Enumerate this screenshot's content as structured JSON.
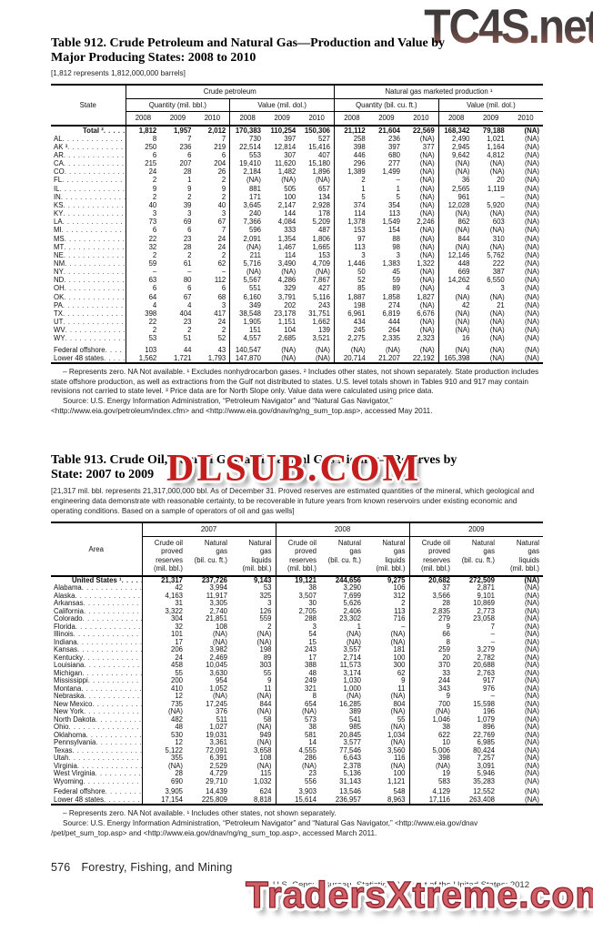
{
  "watermarks": {
    "top": "TC4S.net",
    "middle": "DLSUB.COM",
    "bottom": "TradersXtreme.com"
  },
  "table912": {
    "title_lines": [
      "Table 912. Crude Petroleum and Natural Gas—Production and Value by",
      "Major Producing States: 2008 to 2010"
    ],
    "bracket_note": "[1,812 represents 1,812,000,000 barrels]",
    "state_header": "State",
    "groups": [
      "Crude petroleum",
      "Natural gas marketed production ¹"
    ],
    "subgroups": [
      "Quantity (mil. bbl.)",
      "Value (mil. dol.)",
      "Quantity (bil. cu. ft.)",
      "Value (mil. dol.)"
    ],
    "years": [
      "2008",
      "2009",
      "2010"
    ],
    "rows": [
      {
        "label": "Total ²",
        "bold": true,
        "values": [
          "1,812",
          "1,957",
          "2,012",
          "170,383",
          "110,254",
          "150,306",
          "21,112",
          "21,604",
          "22,569",
          "168,342",
          "79,188",
          "(NA)"
        ]
      },
      {
        "label": "AL",
        "values": [
          "8",
          "7",
          "7",
          "730",
          "397",
          "527",
          "258",
          "236",
          "(NA)",
          "2,490",
          "1,021",
          "(NA)"
        ]
      },
      {
        "label": "AK ³",
        "values": [
          "250",
          "236",
          "219",
          "22,514",
          "12,814",
          "15,416",
          "398",
          "397",
          "377",
          "2,945",
          "1,164",
          "(NA)"
        ]
      },
      {
        "label": "AR",
        "values": [
          "6",
          "6",
          "6",
          "553",
          "307",
          "407",
          "446",
          "680",
          "(NA)",
          "9,642",
          "4,812",
          "(NA)"
        ]
      },
      {
        "label": "CA",
        "values": [
          "215",
          "207",
          "204",
          "19,410",
          "11,620",
          "15,180",
          "296",
          "277",
          "(NA)",
          "(NA)",
          "(NA)",
          "(NA)"
        ]
      },
      {
        "label": "CO",
        "values": [
          "24",
          "28",
          "26",
          "2,184",
          "1,482",
          "1,896",
          "1,389",
          "1,499",
          "(NA)",
          "(NA)",
          "(NA)",
          "(NA)"
        ]
      },
      {
        "label": "FL",
        "values": [
          "2",
          "1",
          "2",
          "(NA)",
          "(NA)",
          "(NA)",
          "2",
          "–",
          "(NA)",
          "36",
          "20",
          "(NA)"
        ]
      },
      {
        "label": "IL",
        "values": [
          "9",
          "9",
          "9",
          "881",
          "505",
          "657",
          "1",
          "1",
          "(NA)",
          "2,565",
          "1,119",
          "(NA)"
        ]
      },
      {
        "label": "IN",
        "values": [
          "2",
          "2",
          "2",
          "171",
          "100",
          "134",
          "5",
          "5",
          "(NA)",
          "961",
          "–",
          "(NA)"
        ]
      },
      {
        "label": "KS",
        "values": [
          "40",
          "39",
          "40",
          "3,645",
          "2,147",
          "2,928",
          "374",
          "354",
          "(NA)",
          "12,028",
          "5,920",
          "(NA)"
        ]
      },
      {
        "label": "KY",
        "values": [
          "3",
          "3",
          "3",
          "240",
          "144",
          "178",
          "114",
          "113",
          "(NA)",
          "(NA)",
          "(NA)",
          "(NA)"
        ]
      },
      {
        "label": "LA",
        "values": [
          "73",
          "69",
          "67",
          "7,366",
          "4,084",
          "5,209",
          "1,378",
          "1,549",
          "2,246",
          "862",
          "603",
          "(NA)"
        ]
      },
      {
        "label": "MI",
        "values": [
          "6",
          "6",
          "7",
          "596",
          "333",
          "487",
          "153",
          "154",
          "(NA)",
          "(NA)",
          "(NA)",
          "(NA)"
        ]
      },
      {
        "label": "MS",
        "values": [
          "22",
          "23",
          "24",
          "2,091",
          "1,354",
          "1,806",
          "97",
          "88",
          "(NA)",
          "844",
          "310",
          "(NA)"
        ]
      },
      {
        "label": "MT",
        "values": [
          "32",
          "28",
          "24",
          "(NA)",
          "1,467",
          "1,665",
          "113",
          "98",
          "(NA)",
          "(NA)",
          "(NA)",
          "(NA)"
        ]
      },
      {
        "label": "NE",
        "values": [
          "2",
          "2",
          "2",
          "211",
          "114",
          "153",
          "3",
          "3",
          "(NA)",
          "12,146",
          "5,762",
          "(NA)"
        ]
      },
      {
        "label": "NM",
        "values": [
          "59",
          "61",
          "62",
          "5,716",
          "3,490",
          "4,709",
          "1,446",
          "1,383",
          "1,322",
          "448",
          "222",
          "(NA)"
        ]
      },
      {
        "label": "NY",
        "values": [
          "–",
          "–",
          "–",
          "(NA)",
          "(NA)",
          "(NA)",
          "50",
          "45",
          "(NA)",
          "669",
          "387",
          "(NA)"
        ]
      },
      {
        "label": "ND",
        "values": [
          "63",
          "80",
          "112",
          "5,567",
          "4,286",
          "7,867",
          "52",
          "59",
          "(NA)",
          "14,262",
          "6,550",
          "(NA)"
        ]
      },
      {
        "label": "OH",
        "values": [
          "6",
          "6",
          "6",
          "551",
          "329",
          "427",
          "85",
          "89",
          "(NA)",
          "4",
          "3",
          "(NA)"
        ]
      },
      {
        "label": "OK",
        "values": [
          "64",
          "67",
          "68",
          "6,160",
          "3,791",
          "5,116",
          "1,887",
          "1,858",
          "1,827",
          "(NA)",
          "(NA)",
          "(NA)"
        ]
      },
      {
        "label": "PA",
        "values": [
          "4",
          "4",
          "3",
          "349",
          "202",
          "243",
          "198",
          "274",
          "(NA)",
          "42",
          "21",
          "(NA)"
        ]
      },
      {
        "label": "TX",
        "values": [
          "398",
          "404",
          "417",
          "38,548",
          "23,178",
          "31,751",
          "6,961",
          "6,819",
          "6,676",
          "(NA)",
          "(NA)",
          "(NA)"
        ]
      },
      {
        "label": "UT",
        "values": [
          "22",
          "23",
          "24",
          "1,905",
          "1,151",
          "1,662",
          "434",
          "444",
          "(NA)",
          "(NA)",
          "(NA)",
          "(NA)"
        ]
      },
      {
        "label": "WV",
        "values": [
          "2",
          "2",
          "2",
          "151",
          "104",
          "139",
          "245",
          "264",
          "(NA)",
          "(NA)",
          "(NA)",
          "(NA)"
        ]
      },
      {
        "label": "WY",
        "values": [
          "53",
          "51",
          "52",
          "4,557",
          "2,685",
          "3,521",
          "2,275",
          "2,335",
          "2,323",
          "16",
          "(NA)",
          "(NA)"
        ]
      },
      {
        "label": "Federal offshore",
        "gap_before": true,
        "values": [
          "103",
          "44",
          "43",
          "140,547",
          "(NA)",
          "(NA)",
          "(NA)",
          "(NA)",
          "(NA)",
          "(NA)",
          "(NA)",
          "(NA)"
        ]
      },
      {
        "label": "Lower 48 states",
        "values": [
          "1,562",
          "1,721",
          "1,793",
          "147,870",
          "(NA)",
          "(NA)",
          "20,714",
          "21,207",
          "22,192",
          "165,398",
          "(NA)",
          "(NA)"
        ]
      }
    ],
    "footnote": "– Represents zero. NA Not available.  ¹ Excludes nonhydrocarbon gases.  ² Includes other states, not shown separately. State production includes state offshore production, as well as extractions from the Gulf not distributed to states. U.S. level totals shown in Tables 910 and 917 may contain revisions not carried to state level.  ³ Price data are for North Slope only. Value data were calculated using price data.",
    "source_line1": "Source: U.S. Energy Information Administration, “Petroleum Navigator” and “Natural Gas Navigator,”",
    "source_line2": "<http://www.eia.gov/petroleum/index.cfm> and <http://www.eia.gov/dnav/ng/ng_sum_top.asp>, accessed May 2011."
  },
  "table913": {
    "title_lines": [
      "Table 913. Crude Oil, Natural Gas, and Natural Gas Liquids—Reserves by",
      "State: 2007 to 2009"
    ],
    "bracket_note": "[21,317 mil. bbl. represents 21,317,000,000 bbl. As of December 31. Proved reserves are estimated quantities of the mineral, which geological and engineering data demonstrate with reasonable certainty, to be recoverable in future years from known reservoirs under existing economic and operating conditions. Based on a sample of operators of oil and gas wells]",
    "area_header": "Area",
    "years": [
      "2007",
      "2008",
      "2009"
    ],
    "col_headers": [
      "Crude oil\nproved\nreserves\n(mil. bbl.)",
      "Natural\ngas\n(bil. cu. ft.)",
      "Natural\ngas\nliquids\n(mil. bbl.)"
    ],
    "rows": [
      {
        "label": "United States ¹",
        "bold": true,
        "values": [
          "21,317",
          "237,726",
          "9,143",
          "19,121",
          "244,656",
          "9,275",
          "20,682",
          "272,509",
          "(NA)"
        ]
      },
      {
        "label": "Alabama",
        "values": [
          "42",
          "3,994",
          "53",
          "38",
          "3,290",
          "106",
          "37",
          "2,871",
          "(NA)"
        ]
      },
      {
        "label": "Alaska",
        "values": [
          "4,163",
          "11,917",
          "325",
          "3,507",
          "7,699",
          "312",
          "3,566",
          "9,101",
          "(NA)"
        ]
      },
      {
        "label": "Arkansas",
        "values": [
          "31",
          "3,305",
          "3",
          "30",
          "5,626",
          "2",
          "28",
          "10,869",
          "(NA)"
        ]
      },
      {
        "label": "California",
        "values": [
          "3,322",
          "2,740",
          "126",
          "2,705",
          "2,406",
          "113",
          "2,835",
          "2,773",
          "(NA)"
        ]
      },
      {
        "label": "Colorado",
        "values": [
          "304",
          "21,851",
          "559",
          "288",
          "23,302",
          "716",
          "279",
          "23,058",
          "(NA)"
        ]
      },
      {
        "label": "Florida",
        "values": [
          "32",
          "108",
          "2",
          "3",
          "1",
          "–",
          "9",
          "7",
          "(NA)"
        ]
      },
      {
        "label": "Illinois",
        "values": [
          "101",
          "(NA)",
          "(NA)",
          "54",
          "(NA)",
          "(NA)",
          "66",
          "–",
          "(NA)"
        ]
      },
      {
        "label": "Indiana",
        "values": [
          "17",
          "(NA)",
          "(NA)",
          "15",
          "(NA)",
          "(NA)",
          "8",
          "–",
          "(NA)"
        ]
      },
      {
        "label": "Kansas",
        "values": [
          "206",
          "3,982",
          "198",
          "243",
          "3,557",
          "181",
          "259",
          "3,279",
          "(NA)"
        ]
      },
      {
        "label": "Kentucky",
        "values": [
          "24",
          "2,469",
          "89",
          "17",
          "2,714",
          "100",
          "20",
          "2,782",
          "(NA)"
        ]
      },
      {
        "label": "Louisiana",
        "values": [
          "458",
          "10,045",
          "303",
          "388",
          "11,573",
          "300",
          "370",
          "20,688",
          "(NA)"
        ]
      },
      {
        "label": "Michigan",
        "values": [
          "55",
          "3,630",
          "55",
          "48",
          "3,174",
          "62",
          "33",
          "2,763",
          "(NA)"
        ]
      },
      {
        "label": "Mississippi",
        "values": [
          "200",
          "954",
          "9",
          "249",
          "1,030",
          "9",
          "244",
          "917",
          "(NA)"
        ]
      },
      {
        "label": "Montana",
        "values": [
          "410",
          "1,052",
          "11",
          "321",
          "1,000",
          "11",
          "343",
          "976",
          "(NA)"
        ]
      },
      {
        "label": "Nebraska",
        "values": [
          "12",
          "(NA)",
          "(NA)",
          "8",
          "(NA)",
          "(NA)",
          "9",
          "–",
          "(NA)"
        ]
      },
      {
        "label": "New Mexico",
        "values": [
          "735",
          "17,245",
          "844",
          "654",
          "16,285",
          "804",
          "700",
          "15,598",
          "(NA)"
        ]
      },
      {
        "label": "New York",
        "values": [
          "(NA)",
          "376",
          "(NA)",
          "(NA)",
          "389",
          "(NA)",
          "(NA)",
          "196",
          "(NA)"
        ]
      },
      {
        "label": "North Dakota",
        "values": [
          "482",
          "511",
          "58",
          "573",
          "541",
          "55",
          "1,046",
          "1,079",
          "(NA)"
        ]
      },
      {
        "label": "Ohio",
        "values": [
          "48",
          "1,027",
          "(NA)",
          "38",
          "985",
          "(NA)",
          "38",
          "896",
          "(NA)"
        ]
      },
      {
        "label": "Oklahoma",
        "values": [
          "530",
          "19,031",
          "949",
          "581",
          "20,845",
          "1,034",
          "622",
          "22,769",
          "(NA)"
        ]
      },
      {
        "label": "Pennsylvania",
        "values": [
          "12",
          "3,361",
          "(NA)",
          "14",
          "3,577",
          "(NA)",
          "10",
          "6,985",
          "(NA)"
        ]
      },
      {
        "label": "Texas",
        "values": [
          "5,122",
          "72,091",
          "3,658",
          "4,555",
          "77,546",
          "3,560",
          "5,006",
          "80,424",
          "(NA)"
        ]
      },
      {
        "label": "Utah",
        "values": [
          "355",
          "6,391",
          "108",
          "286",
          "6,643",
          "116",
          "398",
          "7,257",
          "(NA)"
        ]
      },
      {
        "label": "Virginia",
        "values": [
          "(NA)",
          "2,529",
          "(NA)",
          "(NA)",
          "2,378",
          "(NA)",
          "(NA)",
          "3,091",
          "(NA)"
        ]
      },
      {
        "label": "West Virginia",
        "values": [
          "28",
          "4,729",
          "115",
          "23",
          "5,136",
          "100",
          "19",
          "5,946",
          "(NA)"
        ]
      },
      {
        "label": "Wyoming",
        "values": [
          "690",
          "29,710",
          "1,032",
          "556",
          "31,143",
          "1,121",
          "583",
          "35,283",
          "(NA)"
        ]
      },
      {
        "label": "Federal offshore",
        "gap_before": true,
        "values": [
          "3,905",
          "14,439",
          "624",
          "3,903",
          "13,546",
          "548",
          "4,129",
          "12,552",
          "(NA)"
        ]
      },
      {
        "label": "Lower 48 states",
        "values": [
          "17,154",
          "225,809",
          "8,818",
          "15,614",
          "236,957",
          "8,963",
          "17,116",
          "263,408",
          "(NA)"
        ]
      }
    ],
    "footnote": "– Represents zero. NA Not available.  ¹ Includes other states, not shown separately.",
    "source_line1": "Source: U.S. Energy Information Administration, “Petroleum Navigator” and “Natural Gas Navigator,” <http://www.eia.gov/dnav",
    "source_line2": "/pet/pet_sum_top.asp> and <http://www.eia.gov/dnav/ng/ng_sum_top.asp>, accessed March 2011."
  },
  "footer": {
    "page_number": "576",
    "left_text": "Forestry, Fishing, and Mining",
    "right_text": "U.S. Census Bureau, Statistical Abstract of the United States: 2012"
  }
}
